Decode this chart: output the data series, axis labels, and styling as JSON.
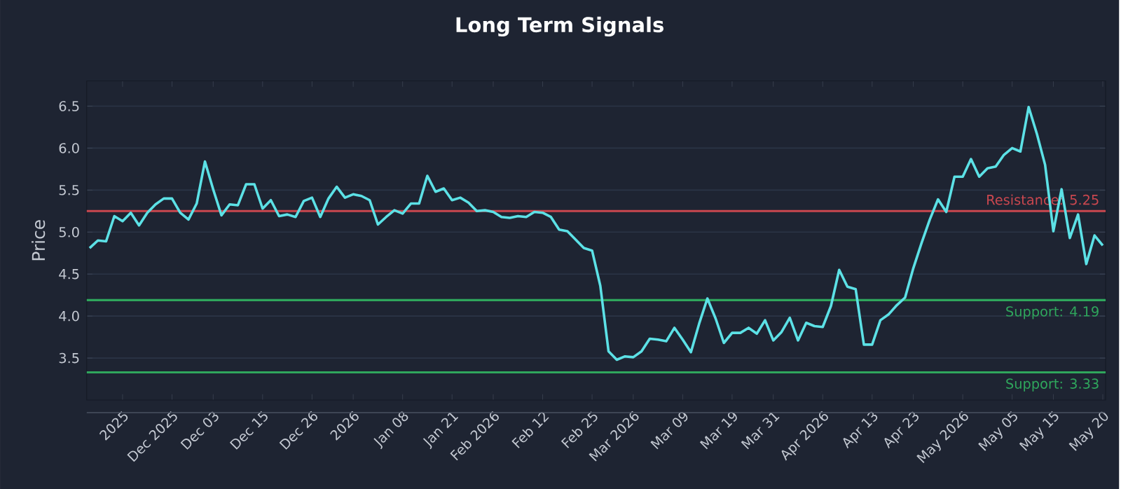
{
  "chart_data": {
    "type": "line",
    "title": "Long Term Signals",
    "ylabel": "Price",
    "categories": [
      null,
      null,
      null,
      null,
      "2025",
      null,
      null,
      null,
      null,
      null,
      "Dec 2025",
      null,
      null,
      null,
      null,
      "Dec 03",
      null,
      null,
      null,
      null,
      null,
      "Dec 15",
      null,
      null,
      null,
      null,
      null,
      "Dec 26",
      null,
      null,
      null,
      null,
      "2026",
      null,
      null,
      null,
      null,
      null,
      "Jan 08",
      null,
      null,
      null,
      null,
      null,
      "Jan 21",
      null,
      null,
      null,
      null,
      "Feb 2026",
      null,
      null,
      null,
      null,
      null,
      "Feb 12",
      null,
      null,
      null,
      null,
      null,
      "Feb 25",
      null,
      null,
      null,
      null,
      "Mar 2026",
      null,
      null,
      null,
      null,
      null,
      "Mar 09",
      null,
      null,
      null,
      null,
      null,
      "Mar 19",
      null,
      null,
      null,
      null,
      "Mar 31",
      null,
      null,
      null,
      null,
      null,
      "Apr 2026",
      null,
      null,
      null,
      null,
      null,
      "Apr 13",
      null,
      null,
      null,
      null,
      "Apr 23",
      null,
      null,
      null,
      null,
      null,
      "May 2026",
      null,
      null,
      null,
      null,
      null,
      "May 05",
      null,
      null,
      null,
      null,
      "May 15",
      null,
      null,
      null,
      null,
      null,
      "May 20"
    ],
    "series": [
      {
        "color": "#5ce1e6",
        "values": [
          4.81,
          4.9,
          4.89,
          5.19,
          5.13,
          5.23,
          5.08,
          5.23,
          5.33,
          5.4,
          5.4,
          5.23,
          5.15,
          5.34,
          5.84,
          5.51,
          5.2,
          5.33,
          5.32,
          5.57,
          5.57,
          5.28,
          5.38,
          5.19,
          5.21,
          5.18,
          5.37,
          5.41,
          5.18,
          5.4,
          5.54,
          5.41,
          5.45,
          5.43,
          5.38,
          5.09,
          5.18,
          5.26,
          5.22,
          5.34,
          5.34,
          5.67,
          5.48,
          5.52,
          5.38,
          5.41,
          5.35,
          5.25,
          5.26,
          5.24,
          5.18,
          5.17,
          5.19,
          5.18,
          5.24,
          5.23,
          5.18,
          5.03,
          5.01,
          4.91,
          4.81,
          4.78,
          4.36,
          3.58,
          3.48,
          3.52,
          3.51,
          3.58,
          3.73,
          3.72,
          3.7,
          3.86,
          3.72,
          3.57,
          3.91,
          4.21,
          3.97,
          3.68,
          3.8,
          3.8,
          3.86,
          3.79,
          3.95,
          3.71,
          3.81,
          3.98,
          3.71,
          3.92,
          3.88,
          3.87,
          4.12,
          4.55,
          4.35,
          4.32,
          3.66,
          3.66,
          3.95,
          4.02,
          4.13,
          4.22,
          4.57,
          4.87,
          5.15,
          5.39,
          5.24,
          5.66,
          5.66,
          5.87,
          5.66,
          5.76,
          5.78,
          5.92,
          6.0,
          5.96,
          6.49,
          6.17,
          5.8,
          5.01,
          5.51,
          4.93,
          5.21,
          4.62,
          4.96,
          4.84
        ]
      }
    ],
    "ylim": [
      3.0,
      6.8
    ],
    "yticks": [
      3.5,
      {
        "value": 4.0,
        "label": "4.0"
      },
      4.5,
      {
        "value": 5.0,
        "label": "5.0"
      },
      5.5,
      {
        "value": 6.0,
        "label": "6.0"
      },
      6.5
    ],
    "grid": "y",
    "marker": "none",
    "line_style": "solid",
    "ref_lines": [
      {
        "axis": "y",
        "value": 5.25,
        "label": "Resistance: 5.25",
        "color": "#c9474f",
        "line_style": "solid"
      },
      {
        "axis": "y",
        "value": 4.19,
        "label": "Support: 4.19",
        "color": "#2fa65c",
        "line_style": "solid"
      },
      {
        "axis": "y",
        "value": 3.33,
        "label": "Support: 3.33",
        "color": "#2fa65c",
        "line_style": "solid"
      }
    ]
  }
}
